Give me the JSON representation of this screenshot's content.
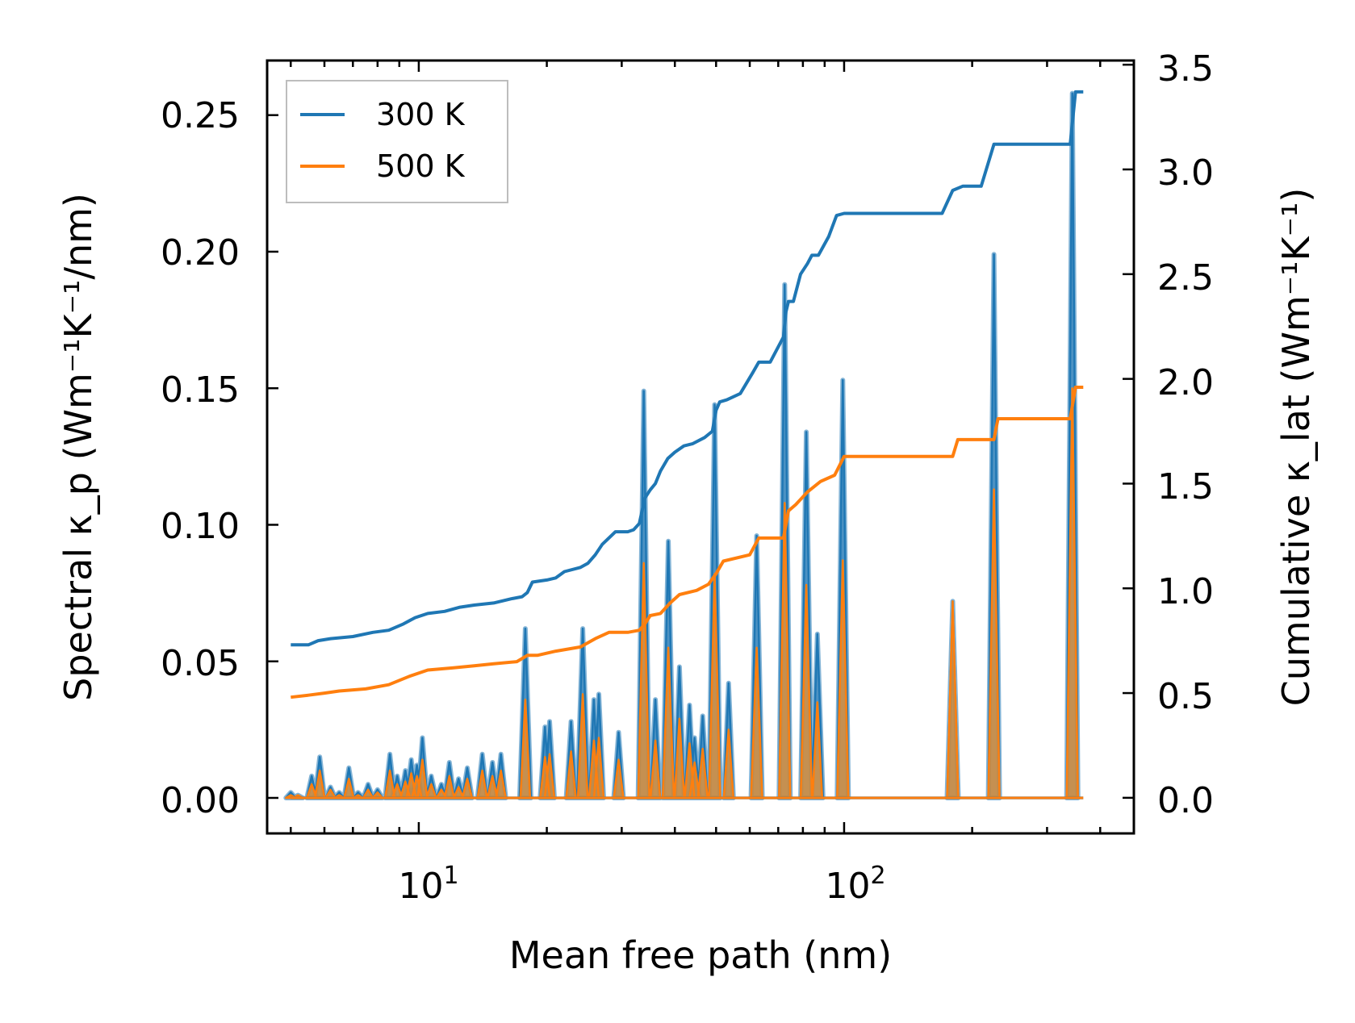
{
  "chart_data": {
    "type": "line",
    "xscale": "log",
    "xlabel": "Mean free path (nm)",
    "ylabel_left": "Spectral κ_p (Wm⁻¹K⁻¹/nm)",
    "ylabel_right": "Cumulative κ_lat (Wm⁻¹K⁻¹)",
    "xlim": [
      4.4,
      480
    ],
    "ylim_left": [
      -0.013,
      0.27
    ],
    "ylim_right": [
      -0.17,
      3.52
    ],
    "x_ticks": [
      {
        "value": 10,
        "base": "10",
        "exp": "1"
      },
      {
        "value": 100,
        "base": "10",
        "exp": "2"
      }
    ],
    "y_ticks_left": [
      "0.00",
      "0.05",
      "0.10",
      "0.15",
      "0.20",
      "0.25"
    ],
    "y_ticks_right": [
      "0.0",
      "0.5",
      "1.0",
      "1.5",
      "2.0",
      "2.5",
      "3.0",
      "3.5"
    ],
    "legend": {
      "position": "upper-left",
      "entries": [
        "300 K",
        "500 K"
      ]
    },
    "colors": {
      "300 K": "#1f77b4",
      "500 K": "#ff7f0e",
      "fill_300": "#1f77b4",
      "fill_500": "#d08a3a"
    },
    "series": [
      {
        "name": "300 K",
        "role": "cumulative",
        "axis": "right",
        "x": [
          5,
          5.5,
          5.8,
          6.2,
          7,
          7.8,
          8.5,
          9.2,
          9.8,
          10.5,
          11.5,
          12.5,
          13.5,
          15,
          16.5,
          17.5,
          18,
          18.5,
          20,
          21,
          22,
          24,
          25,
          26,
          27,
          29,
          31,
          32,
          33,
          34,
          35,
          36,
          37,
          38.5,
          40,
          42,
          44,
          47,
          49,
          50,
          51,
          53,
          57,
          61,
          63,
          67,
          72,
          73,
          74,
          76,
          79,
          82,
          84,
          87,
          92,
          96,
          100,
          110,
          140,
          170,
          180,
          190,
          210,
          225,
          240,
          280,
          320,
          340,
          350,
          365
        ],
        "values": [
          0.73,
          0.73,
          0.75,
          0.76,
          0.77,
          0.79,
          0.8,
          0.83,
          0.86,
          0.88,
          0.89,
          0.91,
          0.92,
          0.93,
          0.95,
          0.96,
          0.98,
          1.03,
          1.04,
          1.05,
          1.08,
          1.1,
          1.12,
          1.16,
          1.21,
          1.27,
          1.27,
          1.28,
          1.31,
          1.43,
          1.47,
          1.5,
          1.56,
          1.62,
          1.65,
          1.68,
          1.69,
          1.72,
          1.75,
          1.85,
          1.89,
          1.9,
          1.93,
          2.03,
          2.08,
          2.08,
          2.2,
          2.32,
          2.37,
          2.37,
          2.5,
          2.55,
          2.59,
          2.59,
          2.68,
          2.78,
          2.79,
          2.79,
          2.79,
          2.79,
          2.9,
          2.92,
          2.92,
          3.12,
          3.12,
          3.12,
          3.12,
          3.12,
          3.37,
          3.37
        ]
      },
      {
        "name": "500 K",
        "role": "cumulative",
        "axis": "right",
        "x": [
          5,
          5.5,
          6,
          6.5,
          7.5,
          8.5,
          9.5,
          10.5,
          12,
          13.5,
          15,
          17,
          18,
          19,
          21,
          24,
          26,
          28,
          31,
          33,
          34,
          35,
          37,
          39,
          41,
          45,
          48,
          50,
          52,
          60,
          63,
          72,
          74,
          77,
          82,
          88,
          95,
          100,
          150,
          180,
          185,
          225,
          230,
          330,
          340,
          350,
          365
        ],
        "values": [
          0.48,
          0.49,
          0.5,
          0.51,
          0.52,
          0.54,
          0.58,
          0.61,
          0.62,
          0.63,
          0.64,
          0.65,
          0.68,
          0.68,
          0.7,
          0.72,
          0.76,
          0.79,
          0.79,
          0.8,
          0.83,
          0.87,
          0.88,
          0.93,
          0.97,
          0.99,
          1.02,
          1.07,
          1.13,
          1.16,
          1.24,
          1.24,
          1.37,
          1.4,
          1.46,
          1.51,
          1.54,
          1.63,
          1.63,
          1.63,
          1.71,
          1.71,
          1.81,
          1.81,
          1.81,
          1.96,
          1.96
        ]
      },
      {
        "name": "300 K",
        "role": "spectral",
        "axis": "left",
        "peaks": [
          [
            5.0,
            0.002
          ],
          [
            5.2,
            0.001
          ],
          [
            5.6,
            0.008
          ],
          [
            5.85,
            0.015
          ],
          [
            6.2,
            0.004
          ],
          [
            6.5,
            0.002
          ],
          [
            6.85,
            0.011
          ],
          [
            7.2,
            0.002
          ],
          [
            7.6,
            0.005
          ],
          [
            8.0,
            0.003
          ],
          [
            8.55,
            0.016
          ],
          [
            8.9,
            0.008
          ],
          [
            9.3,
            0.01
          ],
          [
            9.6,
            0.014
          ],
          [
            9.9,
            0.012
          ],
          [
            10.2,
            0.022
          ],
          [
            10.7,
            0.008
          ],
          [
            11.3,
            0.005
          ],
          [
            11.8,
            0.013
          ],
          [
            12.4,
            0.007
          ],
          [
            13.0,
            0.011
          ],
          [
            14.1,
            0.016
          ],
          [
            14.9,
            0.013
          ],
          [
            15.6,
            0.016
          ],
          [
            17.8,
            0.062
          ],
          [
            19.8,
            0.026
          ],
          [
            20.3,
            0.028
          ],
          [
            22.8,
            0.028
          ],
          [
            24.3,
            0.062
          ],
          [
            25.8,
            0.036
          ],
          [
            26.5,
            0.038
          ],
          [
            29.5,
            0.024
          ],
          [
            33.8,
            0.149
          ],
          [
            36.0,
            0.036
          ],
          [
            38.6,
            0.094
          ],
          [
            41.0,
            0.048
          ],
          [
            43.3,
            0.034
          ],
          [
            44.5,
            0.022
          ],
          [
            46.5,
            0.03
          ],
          [
            49.6,
            0.144
          ],
          [
            53.5,
            0.042
          ],
          [
            62.3,
            0.096
          ],
          [
            72.5,
            0.188
          ],
          [
            81.5,
            0.134
          ],
          [
            86.5,
            0.06
          ],
          [
            99.3,
            0.153
          ],
          [
            180.0,
            0.072
          ],
          [
            225.0,
            0.199
          ],
          [
            344.0,
            0.258
          ]
        ]
      },
      {
        "name": "500 K",
        "role": "spectral",
        "axis": "left",
        "peaks": [
          [
            5.0,
            0.001
          ],
          [
            5.2,
            0.001
          ],
          [
            5.6,
            0.005
          ],
          [
            5.85,
            0.01
          ],
          [
            6.2,
            0.003
          ],
          [
            6.5,
            0.001
          ],
          [
            6.85,
            0.007
          ],
          [
            7.2,
            0.001
          ],
          [
            7.6,
            0.003
          ],
          [
            8.0,
            0.002
          ],
          [
            8.55,
            0.01
          ],
          [
            8.9,
            0.005
          ],
          [
            9.3,
            0.006
          ],
          [
            9.6,
            0.009
          ],
          [
            9.9,
            0.008
          ],
          [
            10.2,
            0.014
          ],
          [
            10.7,
            0.005
          ],
          [
            11.3,
            0.003
          ],
          [
            11.8,
            0.008
          ],
          [
            12.4,
            0.004
          ],
          [
            13.0,
            0.007
          ],
          [
            14.1,
            0.01
          ],
          [
            14.9,
            0.008
          ],
          [
            15.6,
            0.01
          ],
          [
            17.8,
            0.036
          ],
          [
            19.8,
            0.015
          ],
          [
            20.3,
            0.016
          ],
          [
            22.8,
            0.017
          ],
          [
            24.3,
            0.038
          ],
          [
            25.8,
            0.021
          ],
          [
            26.5,
            0.022
          ],
          [
            29.5,
            0.014
          ],
          [
            33.8,
            0.086
          ],
          [
            36.0,
            0.021
          ],
          [
            38.6,
            0.055
          ],
          [
            41.0,
            0.029
          ],
          [
            43.3,
            0.02
          ],
          [
            44.5,
            0.013
          ],
          [
            46.5,
            0.018
          ],
          [
            49.6,
            0.082
          ],
          [
            53.5,
            0.025
          ],
          [
            62.3,
            0.055
          ],
          [
            72.5,
            0.108
          ],
          [
            81.5,
            0.078
          ],
          [
            86.5,
            0.035
          ],
          [
            99.3,
            0.087
          ],
          [
            180.0,
            0.072
          ],
          [
            225.0,
            0.113
          ],
          [
            344.0,
            0.15
          ]
        ]
      }
    ]
  }
}
